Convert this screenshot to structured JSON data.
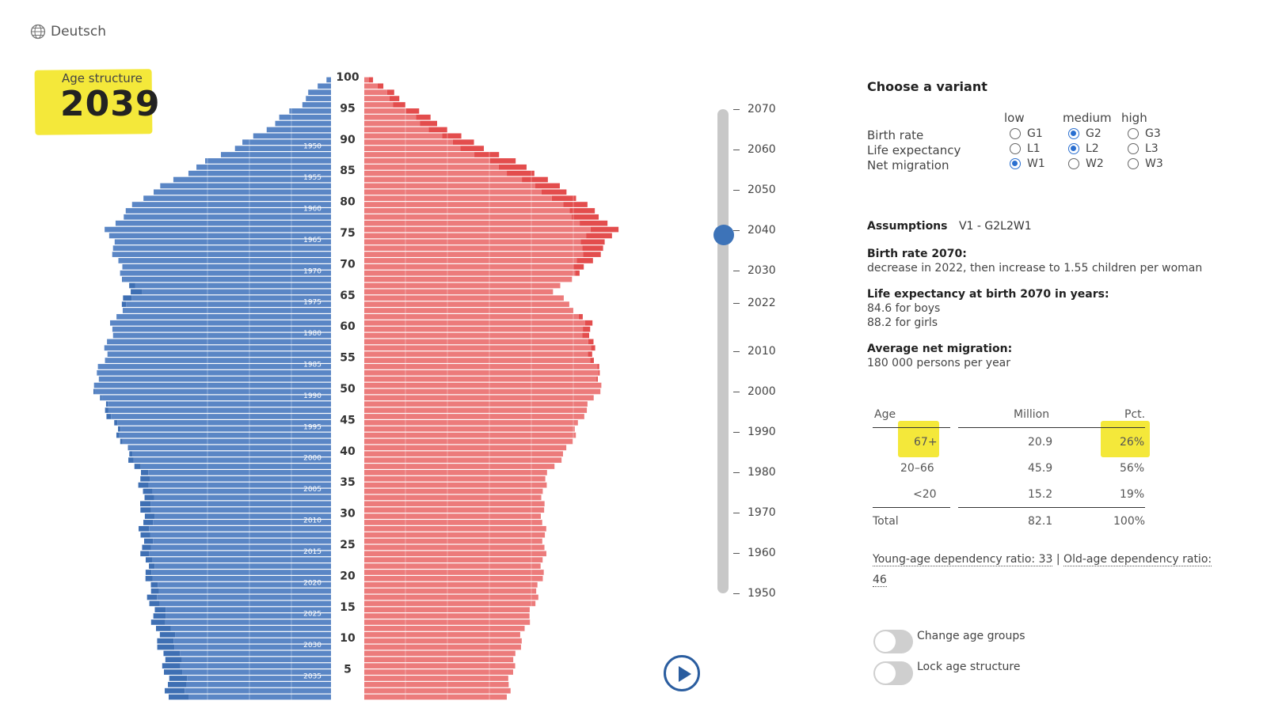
{
  "language": {
    "label": "Deutsch"
  },
  "header": {
    "label": "Age structure",
    "year": "2039"
  },
  "pyramid": {
    "age_axis_labels": [
      "100",
      "95",
      "90",
      "85",
      "80",
      "75",
      "70",
      "65",
      "60",
      "55",
      "50",
      "45",
      "40",
      "35",
      "30",
      "25",
      "20",
      "15",
      "10",
      "5"
    ],
    "birth_year_labels": [
      "1950",
      "1955",
      "1960",
      "1965",
      "1970",
      "1975",
      "1980",
      "1985",
      "1990",
      "1995",
      "2000",
      "2005",
      "2010",
      "2015",
      "2020",
      "2025",
      "2030",
      "2035"
    ],
    "male_color": "#5a86c5",
    "male_surplus_color": "#3e6fb3",
    "female_color": "#ec7b7b",
    "female_surplus_color": "#e34d4d"
  },
  "chart_data": {
    "type": "bar",
    "title": "Age structure 2039",
    "age_groups": [
      0,
      5,
      10,
      15,
      20,
      25,
      30,
      35,
      40,
      45,
      50,
      55,
      60,
      65,
      70,
      75,
      80,
      85,
      90,
      95,
      100
    ],
    "series": [
      {
        "name": "Male",
        "values": [
          205,
          210,
          220,
          228,
          232,
          240,
          238,
          240,
          260,
          280,
          300,
          285,
          275,
          255,
          270,
          282,
          240,
          170,
          95,
          40,
          2
        ]
      },
      {
        "name": "Female",
        "values": [
          180,
          188,
          200,
          215,
          225,
          228,
          225,
          228,
          258,
          275,
          300,
          290,
          285,
          240,
          290,
          318,
          270,
          205,
          120,
          55,
          4
        ]
      }
    ]
  },
  "timeline": {
    "ticks": [
      "2070",
      "2060",
      "2050",
      "2040",
      "2030",
      "2022",
      "2010",
      "2000",
      "1990",
      "1980",
      "1970",
      "1960",
      "1950"
    ],
    "selected_value": 2039
  },
  "controls": {
    "play_label": ""
  },
  "variant": {
    "title": "Choose a variant",
    "columns": [
      "low",
      "medium",
      "high"
    ],
    "rows": [
      {
        "label": "Birth rate",
        "options": [
          "G1",
          "G2",
          "G3"
        ],
        "selected": "G2"
      },
      {
        "label": "Life expectancy",
        "options": [
          "L1",
          "L2",
          "L3"
        ],
        "selected": "L2"
      },
      {
        "label": "Net migration",
        "options": [
          "W1",
          "W2",
          "W3"
        ],
        "selected": "W1"
      }
    ]
  },
  "assumptions": {
    "label": "Assumptions",
    "code": "V1 - G2L2W1",
    "birth_title": "Birth rate 2070:",
    "birth_text": "decrease in 2022, then increase to 1.55 children per woman",
    "life_title": "Life expectancy at birth 2070 in years:",
    "life_boys": "84.6 for boys",
    "life_girls": "88.2 for girls",
    "migration_title": "Average net migration:",
    "migration_text": "180 000 persons per year"
  },
  "table": {
    "headers": {
      "age": "Age",
      "million": "Million",
      "pct": "Pct."
    },
    "rows": [
      {
        "age": "67+",
        "million": "20.9",
        "pct": "26%"
      },
      {
        "age": "20–66",
        "million": "45.9",
        "pct": "56%"
      },
      {
        "age": "<20",
        "million": "15.2",
        "pct": "19%"
      }
    ],
    "total": {
      "age": "Total",
      "million": "82.1",
      "pct": "100%"
    }
  },
  "ratios": {
    "young": "Young-age dependency ratio: 33",
    "sep": "|",
    "old": "Old-age dependency ratio:",
    "old_value": "46"
  },
  "toggles": {
    "change_age_groups": "Change age groups",
    "lock_age_structure": "Lock age structure"
  }
}
